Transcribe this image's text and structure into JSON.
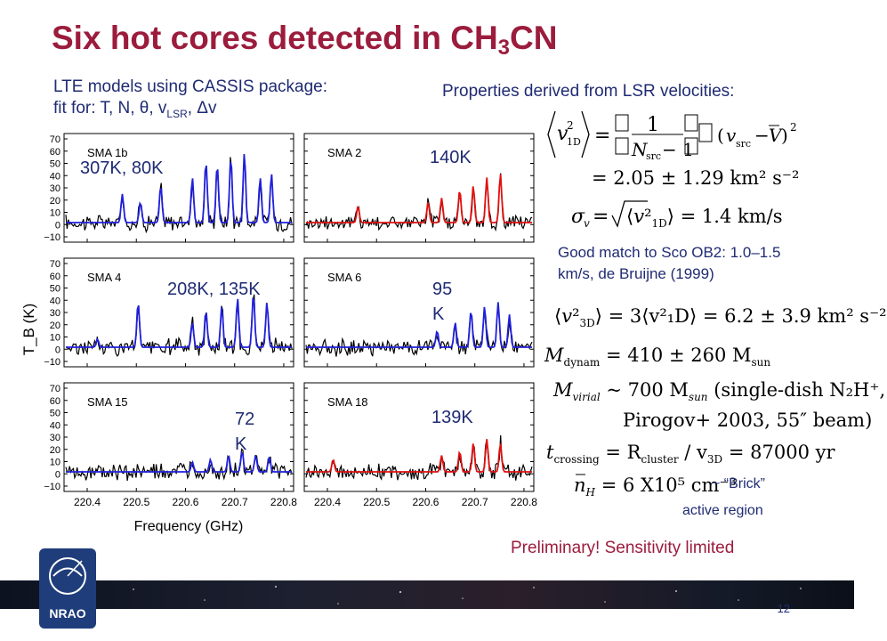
{
  "slide": {
    "title_main": "Six hot cores detected in CH",
    "title_sub": "3",
    "title_end": "CN",
    "subtitle_line1": "LTE models using CASSIS package:",
    "subtitle_line2_pre": "fit for: T, N, θ, v",
    "subtitle_line2_sub": "LSR",
    "subtitle_line2_post": ", Δv",
    "props_title": "Properties derived from LSR velocities:",
    "page_number": "12",
    "logo_text": "NRAO"
  },
  "figure": {
    "ylabel": "T_B (K)",
    "xlabel": "Frequency (GHz)",
    "yticks": [
      "70",
      "60",
      "50",
      "40",
      "30",
      "20",
      "10",
      "0",
      "−10"
    ],
    "xticks": [
      "220.4",
      "220.5",
      "220.6",
      "220.7",
      "220.8"
    ],
    "panels": [
      {
        "name": "SMA 1b",
        "temperature": "307K, 80K",
        "model_color": "#2020dd"
      },
      {
        "name": "SMA 2",
        "temperature": "140K",
        "model_color": "#e01010"
      },
      {
        "name": "SMA 4",
        "temperature": "208K, 135K",
        "model_color": "#2020dd"
      },
      {
        "name": "SMA 6",
        "temperature": "95 K",
        "model_color": "#2020dd"
      },
      {
        "name": "SMA 15",
        "temperature": "72 K",
        "model_color": "#2020dd"
      },
      {
        "name": "SMA 18",
        "temperature": "139K",
        "model_color": "#e01010"
      }
    ]
  },
  "equations": {
    "sigma_1d_result": "= 2.05 ± 1.29 km² s⁻²",
    "sigma_v": "= 1.4 km/s",
    "match_text": "Good match to Sco OB2: 1.0–1.5 km/s, de Bruijne (1999)",
    "v3d": "= 3⟨v²₁D⟩ = 6.2 ± 3.9 km² s⁻²",
    "m_dynam": "= 410 ± 260 M",
    "m_virial": "~ 700 M",
    "m_virial_note1": "(single-dish N₂H⁺,",
    "m_virial_note2": "Pirogov+ 2003, 55″ beam)",
    "t_crossing": "= R",
    "t_crossing_rest": "/ v",
    "t_crossing_value": "= 87000 yr",
    "n_h": "= 6 X10⁵ cm⁻³",
    "brick": "~ “Brick”",
    "active_region": "active region",
    "preliminary": "Preliminary!  Sensitivity limited"
  },
  "colors": {
    "title": "#9b1c3c",
    "text": "#1f2b73",
    "data": "#000000",
    "model_blue": "#2020dd",
    "model_red": "#e01010"
  }
}
